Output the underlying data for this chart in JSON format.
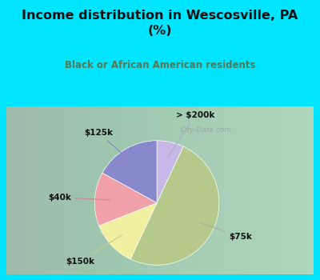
{
  "title": "Income distribution in Wescosville, PA\n(%)",
  "subtitle": "Black or African American residents",
  "labels": [
    "> $200k",
    "$75k",
    "$150k",
    "$40k",
    "$125k"
  ],
  "sizes": [
    7,
    50,
    12,
    14,
    17
  ],
  "colors": [
    "#c8b8e8",
    "#b5c98a",
    "#f0f0a0",
    "#f0a0a8",
    "#8888cc"
  ],
  "background_top": "#00e5ff",
  "background_chart_left": "#d8ede0",
  "background_chart_right": "#eaf4f4",
  "title_color": "#111111",
  "subtitle_color": "#557755",
  "startangle": 90
}
